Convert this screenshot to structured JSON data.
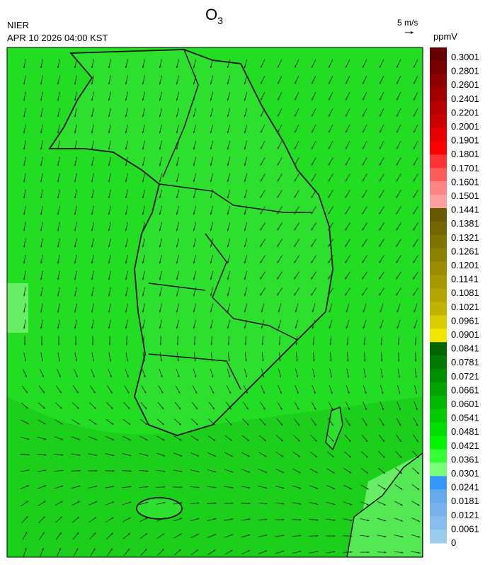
{
  "title": {
    "main": "O",
    "sub": "3"
  },
  "agency": "NIER",
  "datetime": "APR 10 2026 04:00 KST",
  "wind_scale": "5 m/s",
  "unit": "ppmV",
  "colorbar": {
    "labels": [
      "0.3001",
      "0.2801",
      "0.2601",
      "0.2401",
      "0.2201",
      "0.2001",
      "0.1901",
      "0.1801",
      "0.1701",
      "0.1601",
      "0.1501",
      "0.1441",
      "0.1381",
      "0.1321",
      "0.1261",
      "0.1201",
      "0.1141",
      "0.1081",
      "0.1021",
      "0.0961",
      "0.0901",
      "0.0841",
      "0.0781",
      "0.0721",
      "0.0661",
      "0.0601",
      "0.0541",
      "0.0481",
      "0.0421",
      "0.0361",
      "0.0301",
      "0.0241",
      "0.0181",
      "0.0121",
      "0.0061",
      "0"
    ],
    "colors": [
      "#660000",
      "#7a0000",
      "#8f0000",
      "#a30000",
      "#b80000",
      "#cc0000",
      "#e60000",
      "#ff0000",
      "#ff3333",
      "#ff5c5c",
      "#ff8585",
      "#ff9f9f",
      "#665900",
      "#736600",
      "#807300",
      "#8c8000",
      "#998c00",
      "#a69900",
      "#b3a600",
      "#c0b300",
      "#d9cc00",
      "#f2e600",
      "#006600",
      "#007a00",
      "#008f00",
      "#00a300",
      "#00b800",
      "#00cc00",
      "#00e000",
      "#00f500",
      "#33ff33",
      "#77ff77",
      "#3399ff",
      "#66aaee",
      "#77b2ee",
      "#88bbee",
      "#99ccee"
    ]
  }
}
